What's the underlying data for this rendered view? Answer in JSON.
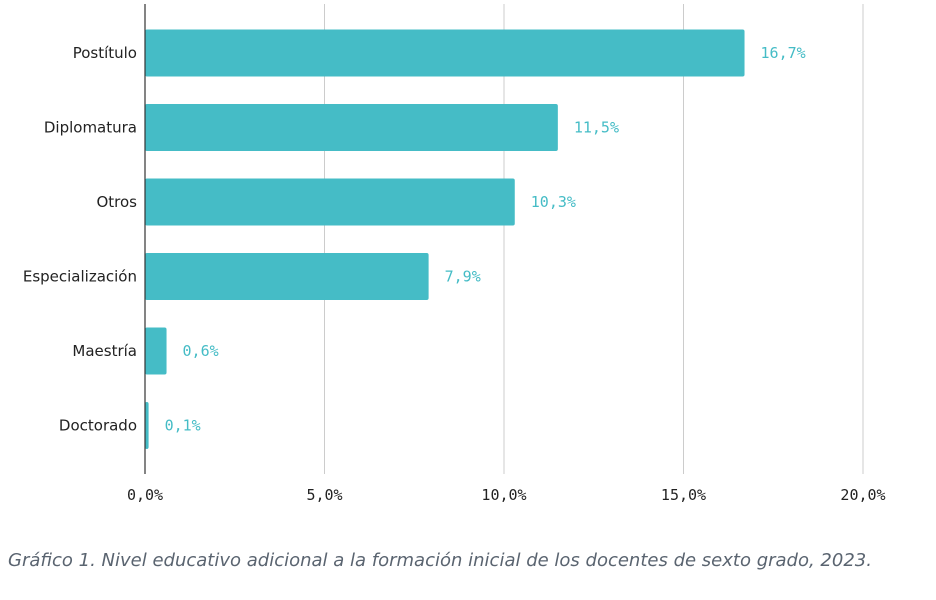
{
  "chart_data": {
    "type": "bar",
    "orientation": "horizontal",
    "categories": [
      "Postítulo",
      "Diplomatura",
      "Otros",
      "Especialización",
      "Maestría",
      "Doctorado"
    ],
    "values": [
      16.7,
      11.5,
      10.3,
      7.9,
      0.6,
      0.1
    ],
    "value_labels": [
      "16,7%",
      "11,5%",
      "10,3%",
      "7,9%",
      "0,6%",
      "0,1%"
    ],
    "xlim": [
      0,
      20
    ],
    "xticks": [
      0,
      5,
      10,
      15,
      20
    ],
    "xtick_labels": [
      "0,0%",
      "5,0%",
      "10,0%",
      "15,0%",
      "20,0%"
    ],
    "grid": "vertical",
    "legend": "none",
    "bar_color": "#45BCC6",
    "label_color": "#45BCC6"
  },
  "caption": "Gráfico 1. Nivel educativo adicional a la formación inicial de los docentes de sexto grado, 2023."
}
